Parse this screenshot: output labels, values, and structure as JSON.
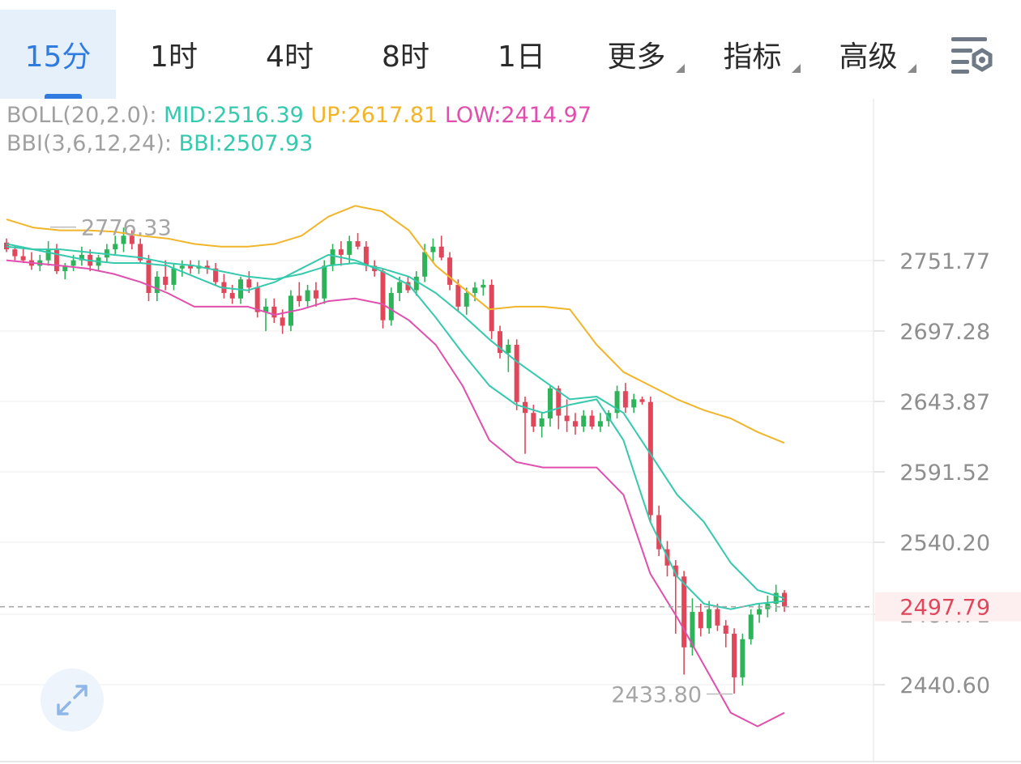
{
  "tabs": [
    {
      "label": "15分",
      "active": true,
      "dropdown": false
    },
    {
      "label": "1时",
      "active": false,
      "dropdown": false
    },
    {
      "label": "4时",
      "active": false,
      "dropdown": false
    },
    {
      "label": "8时",
      "active": false,
      "dropdown": false
    },
    {
      "label": "1日",
      "active": false,
      "dropdown": false
    },
    {
      "label": "更多",
      "active": false,
      "dropdown": true
    },
    {
      "label": "指标",
      "active": false,
      "dropdown": true
    },
    {
      "label": "高级",
      "active": false,
      "dropdown": true
    }
  ],
  "toolbar": {
    "settings_icon": "chart-settings-icon",
    "expand_icon": "expand-arrows-icon"
  },
  "legend": {
    "boll_label": "BOLL(20,2.0):",
    "mid": "MID:2516.39",
    "up": "UP:2617.81",
    "low": "LOW:2414.97",
    "bbi_label": "BBI(3,6,12,24):",
    "bbi": "BBI:2507.93"
  },
  "colors": {
    "accent": "#2f7be0",
    "up_candle": "#2fb35a",
    "down_candle": "#e0475b",
    "boll_up": "#f0b52a",
    "boll_mid": "#35c9ad",
    "boll_low": "#e04fae",
    "bbi": "#35c9ad",
    "price_tag": "#e0475b"
  },
  "chart_data": {
    "type": "candlestick",
    "y_ticks": [
      "2751.77",
      "2697.28",
      "2643.87",
      "2591.52",
      "2540.20",
      "2487.71",
      "2440.60"
    ],
    "y_tick_values": [
      2751.77,
      2697.28,
      2643.87,
      2591.52,
      2540.2,
      2487.71,
      2440.6
    ],
    "current_price": 2497.79,
    "current_price_label": "2497.79",
    "max_label": "2776.33",
    "max_value": 2776.33,
    "min_label": "2433.80",
    "min_value": 2433.8,
    "candles": [
      [
        2765,
        2768,
        2758,
        2760
      ],
      [
        2760,
        2763,
        2752,
        2755
      ],
      [
        2755,
        2761,
        2750,
        2752
      ],
      [
        2752,
        2758,
        2745,
        2748
      ],
      [
        2748,
        2756,
        2744,
        2752
      ],
      [
        2752,
        2766,
        2748,
        2760
      ],
      [
        2760,
        2764,
        2742,
        2744
      ],
      [
        2744,
        2750,
        2738,
        2748
      ],
      [
        2748,
        2756,
        2744,
        2752
      ],
      [
        2752,
        2762,
        2748,
        2756
      ],
      [
        2756,
        2760,
        2744,
        2748
      ],
      [
        2748,
        2756,
        2744,
        2754
      ],
      [
        2754,
        2764,
        2750,
        2760
      ],
      [
        2760,
        2770,
        2756,
        2764
      ],
      [
        2764,
        2776,
        2758,
        2770
      ],
      [
        2770,
        2774,
        2760,
        2764
      ],
      [
        2764,
        2768,
        2750,
        2752
      ],
      [
        2752,
        2756,
        2722,
        2728
      ],
      [
        2728,
        2744,
        2722,
        2740
      ],
      [
        2740,
        2752,
        2730,
        2734
      ],
      [
        2734,
        2750,
        2730,
        2746
      ],
      [
        2746,
        2752,
        2740,
        2748
      ],
      [
        2748,
        2752,
        2742,
        2746
      ],
      [
        2746,
        2752,
        2742,
        2748
      ],
      [
        2748,
        2752,
        2742,
        2746
      ],
      [
        2746,
        2750,
        2734,
        2736
      ],
      [
        2736,
        2742,
        2724,
        2728
      ],
      [
        2728,
        2734,
        2720,
        2724
      ],
      [
        2724,
        2740,
        2720,
        2738
      ],
      [
        2738,
        2744,
        2728,
        2732
      ],
      [
        2732,
        2736,
        2710,
        2714
      ],
      [
        2714,
        2724,
        2700,
        2718
      ],
      [
        2718,
        2724,
        2706,
        2710
      ],
      [
        2710,
        2716,
        2698,
        2704
      ],
      [
        2704,
        2730,
        2700,
        2726
      ],
      [
        2726,
        2736,
        2718,
        2722
      ],
      [
        2722,
        2734,
        2718,
        2730
      ],
      [
        2730,
        2736,
        2718,
        2724
      ],
      [
        2724,
        2752,
        2720,
        2748
      ],
      [
        2748,
        2764,
        2744,
        2760
      ],
      [
        2760,
        2766,
        2748,
        2756
      ],
      [
        2756,
        2770,
        2750,
        2766
      ],
      [
        2766,
        2772,
        2760,
        2762
      ],
      [
        2762,
        2766,
        2744,
        2748
      ],
      [
        2748,
        2752,
        2740,
        2744
      ],
      [
        2744,
        2746,
        2702,
        2708
      ],
      [
        2708,
        2732,
        2704,
        2728
      ],
      [
        2728,
        2740,
        2722,
        2736
      ],
      [
        2736,
        2740,
        2728,
        2730
      ],
      [
        2730,
        2744,
        2726,
        2740
      ],
      [
        2740,
        2764,
        2736,
        2758
      ],
      [
        2758,
        2768,
        2750,
        2762
      ],
      [
        2762,
        2770,
        2752,
        2754
      ],
      [
        2754,
        2758,
        2730,
        2734
      ],
      [
        2734,
        2738,
        2714,
        2718
      ],
      [
        2718,
        2732,
        2712,
        2728
      ],
      [
        2728,
        2736,
        2722,
        2732
      ],
      [
        2732,
        2738,
        2726,
        2734
      ],
      [
        2734,
        2738,
        2694,
        2700
      ],
      [
        2700,
        2704,
        2680,
        2684
      ],
      [
        2684,
        2694,
        2670,
        2690
      ],
      [
        2690,
        2694,
        2642,
        2648
      ],
      [
        2648,
        2652,
        2610,
        2640
      ],
      [
        2640,
        2646,
        2626,
        2630
      ],
      [
        2630,
        2640,
        2622,
        2636
      ],
      [
        2636,
        2660,
        2630,
        2658
      ],
      [
        2658,
        2660,
        2628,
        2638
      ],
      [
        2638,
        2650,
        2626,
        2634
      ],
      [
        2634,
        2640,
        2624,
        2630
      ],
      [
        2630,
        2642,
        2626,
        2638
      ],
      [
        2638,
        2642,
        2628,
        2630
      ],
      [
        2630,
        2640,
        2626,
        2634
      ],
      [
        2634,
        2642,
        2630,
        2640
      ],
      [
        2640,
        2660,
        2636,
        2656
      ],
      [
        2656,
        2662,
        2640,
        2644
      ],
      [
        2644,
        2654,
        2640,
        2650
      ],
      [
        2650,
        2652,
        2646,
        2648
      ],
      [
        2648,
        2652,
        2560,
        2565
      ],
      [
        2565,
        2572,
        2535,
        2540
      ],
      [
        2540,
        2546,
        2520,
        2528
      ],
      [
        2528,
        2532,
        2478,
        2520
      ],
      [
        2520,
        2524,
        2448,
        2468
      ],
      [
        2468,
        2504,
        2462,
        2494
      ],
      [
        2494,
        2500,
        2476,
        2482
      ],
      [
        2482,
        2502,
        2478,
        2496
      ],
      [
        2496,
        2500,
        2480,
        2484
      ],
      [
        2484,
        2488,
        2468,
        2478
      ],
      [
        2478,
        2482,
        2434,
        2446
      ],
      [
        2446,
        2478,
        2440,
        2474
      ],
      [
        2474,
        2496,
        2470,
        2492
      ],
      [
        2492,
        2500,
        2486,
        2496
      ],
      [
        2496,
        2506,
        2490,
        2500
      ],
      [
        2500,
        2514,
        2494,
        2508
      ],
      [
        2508,
        2510,
        2494,
        2498
      ]
    ],
    "boll_up": [
      2782,
      2776,
      2774,
      2774,
      2773,
      2770,
      2768,
      2764,
      2762,
      2762,
      2764,
      2770,
      2784,
      2792,
      2788,
      2774,
      2748,
      2732,
      2716,
      2718,
      2718,
      2716,
      2690,
      2670,
      2660,
      2650,
      2642,
      2636,
      2626,
      2618
    ],
    "boll_mid": [
      2762,
      2760,
      2760,
      2758,
      2756,
      2754,
      2750,
      2748,
      2744,
      2740,
      2738,
      2742,
      2748,
      2750,
      2746,
      2740,
      2728,
      2712,
      2694,
      2678,
      2664,
      2650,
      2652,
      2640,
      2610,
      2580,
      2560,
      2530,
      2510,
      2504
    ],
    "boll_low": [
      2752,
      2750,
      2748,
      2746,
      2742,
      2736,
      2728,
      2718,
      2718,
      2718,
      2712,
      2716,
      2722,
      2724,
      2720,
      2708,
      2690,
      2660,
      2620,
      2604,
      2600,
      2600,
      2600,
      2580,
      2522,
      2490,
      2455,
      2420,
      2410,
      2420
    ],
    "bbi": [
      2764,
      2760,
      2756,
      2752,
      2750,
      2750,
      2748,
      2740,
      2732,
      2730,
      2736,
      2746,
      2756,
      2752,
      2744,
      2734,
      2710,
      2684,
      2660,
      2646,
      2640,
      2646,
      2650,
      2620,
      2560,
      2520,
      2500,
      2496,
      2500,
      2502
    ]
  }
}
